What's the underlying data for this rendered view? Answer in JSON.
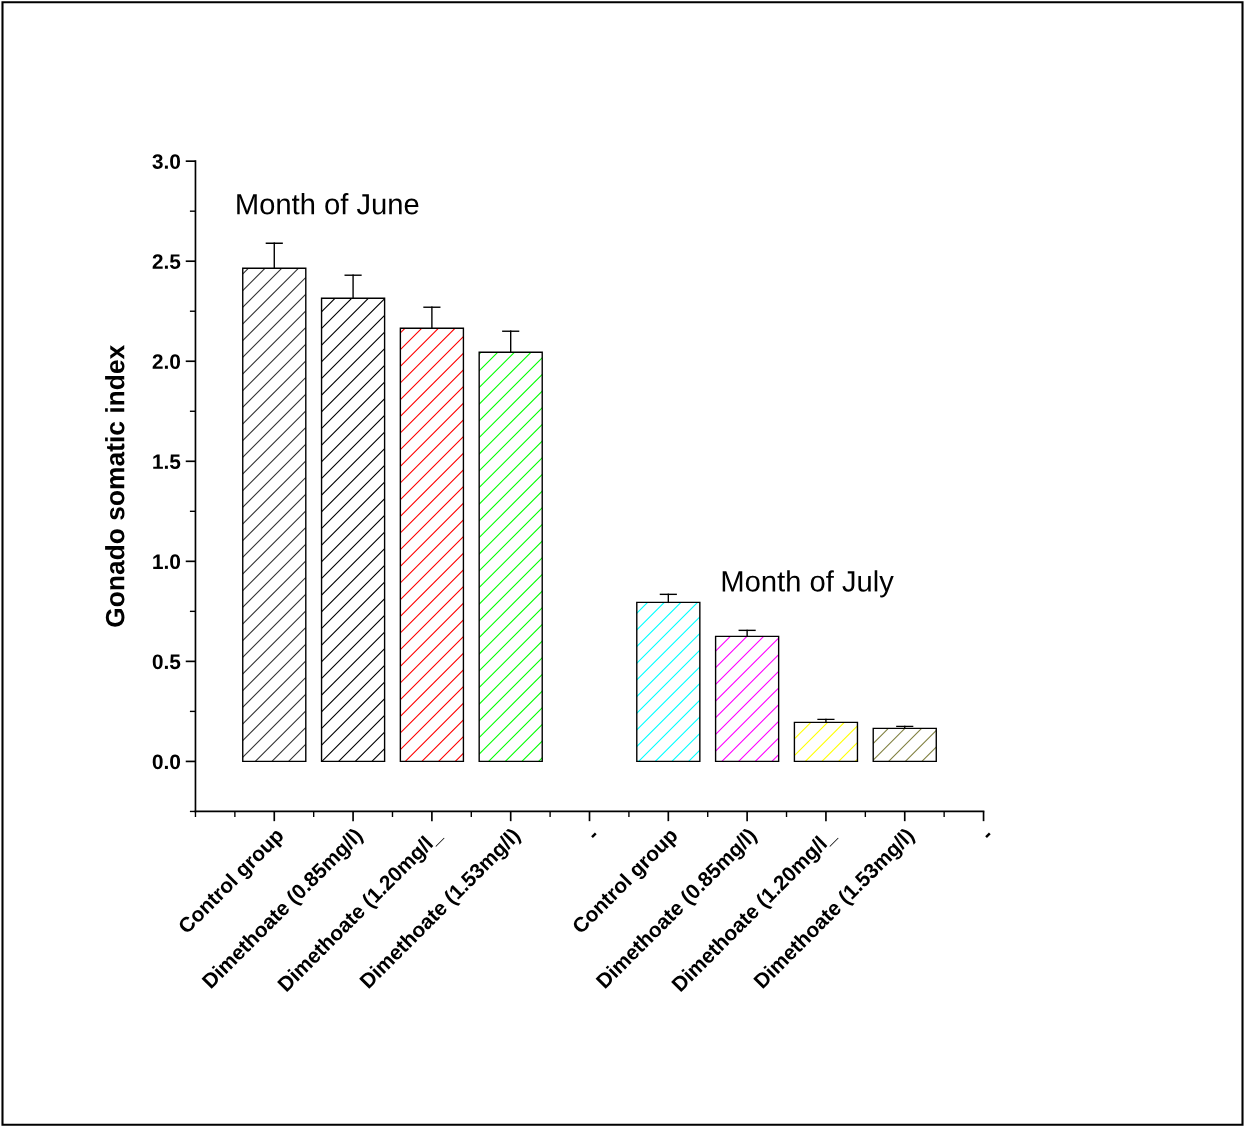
{
  "chart_data": {
    "type": "bar",
    "ylabel": "Gonado somatic index",
    "categories": [
      "Control group",
      "Dimethoate (0.85mg/l)",
      "Dimethoate (1.20mg/l_",
      "Dimethoate (1.53mg/l)",
      "-",
      "Control group",
      "Dimethoate (0.85mg/l)",
      "Dimethoate (1.20mg/l_",
      "Dimethoate (1.53mg/l)",
      "-"
    ],
    "values": [
      2.465,
      2.315,
      2.165,
      2.045,
      null,
      0.795,
      0.625,
      0.195,
      0.165,
      null
    ],
    "errors": [
      [
        2.465,
        2.59
      ],
      [
        2.315,
        2.43
      ],
      [
        2.165,
        2.27
      ],
      [
        2.045,
        2.15
      ],
      null,
      [
        0.795,
        0.835
      ],
      [
        0.625,
        0.655
      ],
      [
        0.195,
        0.21
      ],
      [
        0.165,
        0.175
      ],
      null
    ],
    "colors": [
      "#333333",
      "#000000",
      "#ff0000",
      "#00ff00",
      "#ffffff",
      "#00ffff",
      "#ff00ff",
      "#ffff00",
      "#808040",
      "#ffffff"
    ],
    "ylim": [
      -0.25,
      3.0
    ],
    "yticks": [
      {
        "value": 0.0,
        "label": "0.0"
      },
      {
        "value": 0.5,
        "label": "0.5"
      },
      {
        "value": 1.0,
        "label": "1.0"
      },
      {
        "value": 1.5,
        "label": "1.5"
      },
      {
        "value": 2.0,
        "label": "2.0"
      },
      {
        "value": 2.5,
        "label": "2.5"
      },
      {
        "value": 3.0,
        "label": "3.0"
      },
      {
        "value": -0.25,
        "label": null
      },
      {
        "value": 0.25,
        "label": null
      },
      {
        "value": 0.75,
        "label": null
      },
      {
        "value": 1.25,
        "label": null
      },
      {
        "value": 1.75,
        "label": null
      },
      {
        "value": 2.25,
        "label": null
      },
      {
        "value": 2.75,
        "label": null
      }
    ],
    "annotations": [
      "Month of June",
      "Month of July"
    ],
    "grid": false,
    "legend": false
  }
}
